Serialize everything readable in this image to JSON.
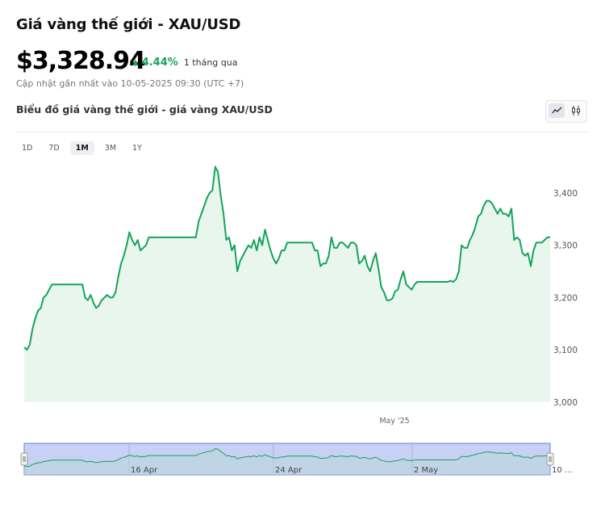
{
  "header": {
    "title": "Giá vàng thế giới - XAU/USD",
    "price": "$3,328.94",
    "change_pct": "4.44%",
    "change_period": "1 tháng qua",
    "updated": "Cập nhật gần nhất vào 10-05-2025 09:30 (UTC +7)",
    "subtitle": "Biểu đồ giá vàng thế giới - giá vàng XAU/USD"
  },
  "chart_controls": {
    "types": [
      {
        "name": "line",
        "icon": "line-chart-icon",
        "active": true
      },
      {
        "name": "candlestick",
        "icon": "candlestick-icon",
        "active": false
      }
    ],
    "ranges": [
      "1D",
      "7D",
      "1M",
      "3M",
      "1Y"
    ],
    "active_range": "1M"
  },
  "colors": {
    "line": "#16a35a",
    "area_fill": "#e8f6ee",
    "up": "#16a35a",
    "navigator_fill": "#c9d0f5",
    "navigator_border": "#6f7bd1"
  },
  "chart_data": {
    "type": "area",
    "ylim": [
      3000,
      3460
    ],
    "y_ticks": [
      3000,
      3100,
      3200,
      3300,
      3400
    ],
    "y_tick_labels": [
      "3,000",
      "3,100",
      "3,200",
      "3,300",
      "3,400"
    ],
    "x_tick_labels": [
      "May '25"
    ],
    "navigator_labels": [
      "16 Apr",
      "24 Apr",
      "2 May",
      "10 ..."
    ],
    "grid": false,
    "values": [
      3105,
      3100,
      3110,
      3140,
      3160,
      3175,
      3180,
      3200,
      3205,
      3215,
      3225,
      3225,
      3225,
      3225,
      3225,
      3225,
      3225,
      3225,
      3225,
      3225,
      3225,
      3225,
      3200,
      3195,
      3205,
      3190,
      3180,
      3185,
      3195,
      3200,
      3205,
      3200,
      3200,
      3210,
      3240,
      3265,
      3280,
      3300,
      3325,
      3310,
      3300,
      3310,
      3290,
      3295,
      3300,
      3315,
      3315,
      3315,
      3315,
      3315,
      3315,
      3315,
      3315,
      3315,
      3315,
      3315,
      3315,
      3315,
      3315,
      3315,
      3315,
      3315,
      3315,
      3345,
      3360,
      3375,
      3390,
      3400,
      3405,
      3450,
      3440,
      3395,
      3360,
      3310,
      3315,
      3290,
      3300,
      3250,
      3270,
      3280,
      3290,
      3300,
      3295,
      3310,
      3290,
      3315,
      3300,
      3330,
      3310,
      3290,
      3275,
      3265,
      3275,
      3290,
      3290,
      3305,
      3305,
      3305,
      3305,
      3305,
      3305,
      3305,
      3305,
      3305,
      3305,
      3290,
      3290,
      3260,
      3265,
      3265,
      3280,
      3315,
      3295,
      3295,
      3305,
      3305,
      3300,
      3295,
      3305,
      3305,
      3300,
      3265,
      3270,
      3280,
      3260,
      3250,
      3270,
      3285,
      3255,
      3220,
      3210,
      3195,
      3195,
      3198,
      3212,
      3215,
      3235,
      3250,
      3225,
      3220,
      3215,
      3225,
      3230,
      3230,
      3230,
      3230,
      3230,
      3230,
      3230,
      3230,
      3230,
      3230,
      3230,
      3230,
      3232,
      3230,
      3235,
      3250,
      3300,
      3295,
      3295,
      3310,
      3320,
      3335,
      3355,
      3360,
      3375,
      3385,
      3385,
      3380,
      3370,
      3360,
      3370,
      3360,
      3360,
      3355,
      3370,
      3310,
      3315,
      3310,
      3285,
      3280,
      3285,
      3260,
      3290,
      3305,
      3305,
      3305,
      3310,
      3315,
      3315
    ]
  }
}
